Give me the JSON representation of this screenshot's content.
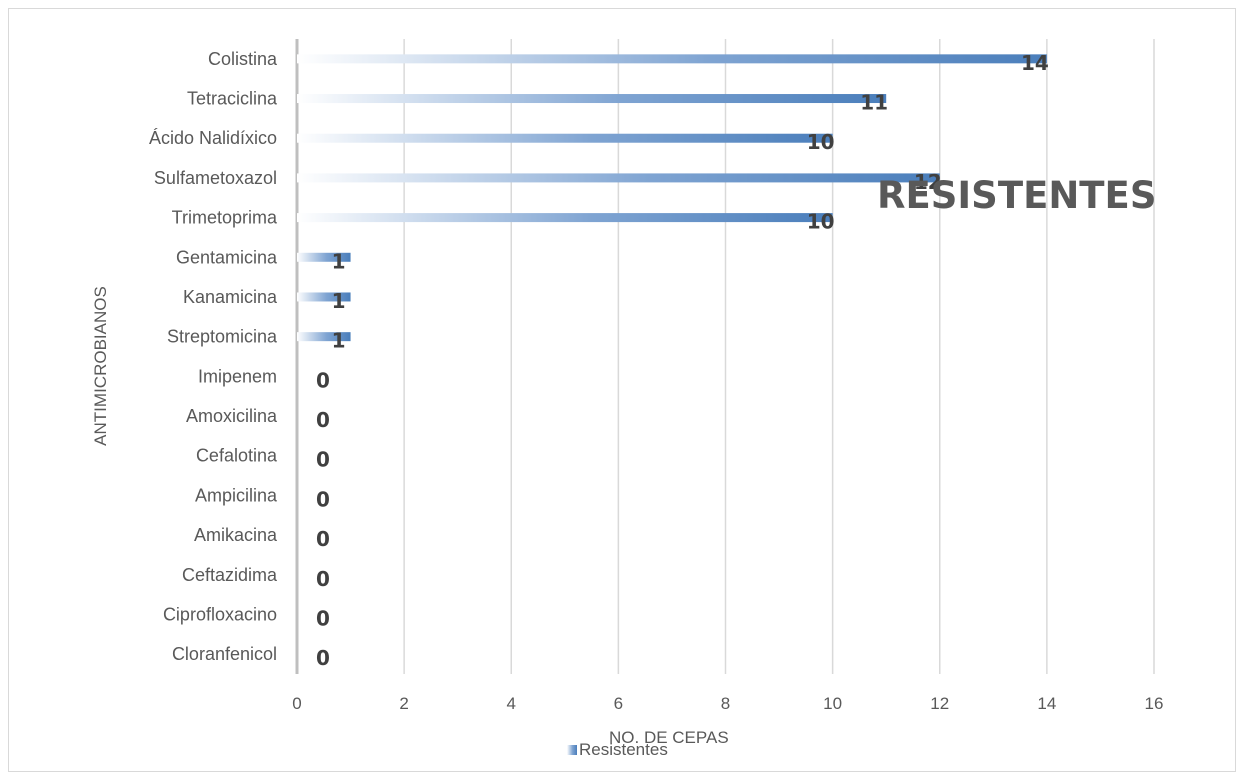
{
  "chart_data": {
    "type": "bar",
    "orientation": "horizontal",
    "title": "RESISTENTES",
    "xlabel": "NO. DE CEPAS",
    "ylabel": "ANTIMICROBIANOS",
    "categories": [
      "Colistina",
      "Tetraciclina",
      "Ácido Nalidíxico",
      "Sulfametoxazol",
      "Trimetoprima",
      "Gentamicina",
      "Kanamicina",
      "Streptomicina",
      "Imipenem",
      "Amoxicilina",
      "Cefalotina",
      "Ampicilina",
      "Amikacina",
      "Ceftazidima",
      "Ciprofloxacino",
      "Cloranfenicol"
    ],
    "series": [
      {
        "name": "Resistentes",
        "values": [
          14,
          11,
          10,
          12,
          10,
          1,
          1,
          1,
          0,
          0,
          0,
          0,
          0,
          0,
          0,
          0
        ]
      }
    ],
    "xlim": [
      0,
      16
    ],
    "xticks": [
      0,
      2,
      4,
      6,
      8,
      10,
      12,
      14,
      16
    ],
    "grid": true,
    "legend": "bottom",
    "colors": {
      "bar": "#4a7ebb",
      "bar_fade": "#ffffff",
      "grid": "#d9d9d9",
      "text": "#595959",
      "label": "#404040"
    }
  }
}
